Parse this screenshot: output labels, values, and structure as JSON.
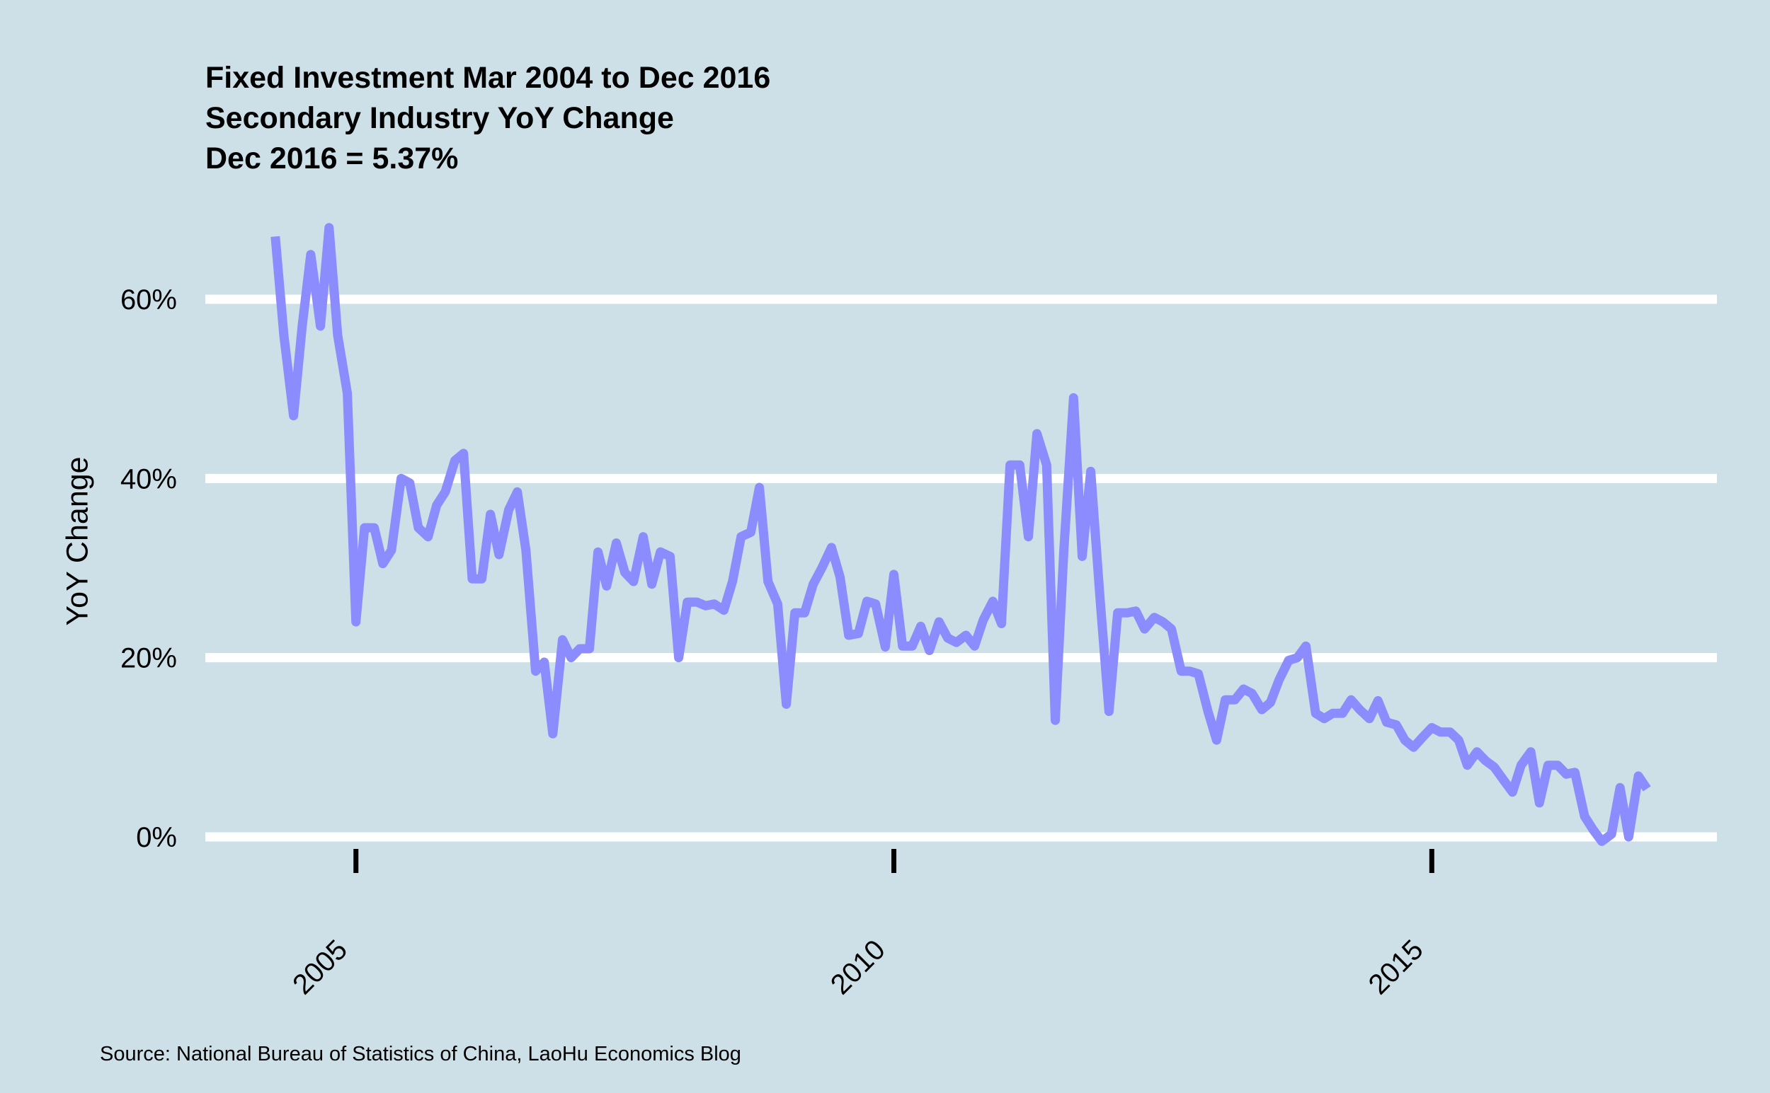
{
  "colors": {
    "background": "#cde0e8",
    "gridline": "#ffffff",
    "series_line": "#8c8cff",
    "text": "#000000"
  },
  "chart_data": {
    "type": "line",
    "title": "Fixed Investment Mar 2004 to Dec 2016",
    "subtitle": "Secondary Industry YoY Change",
    "subtitle2": "Dec 2016 = 5.37%",
    "xlabel": "",
    "ylabel": "YoY Change",
    "caption": "Source: National Bureau of Statistics of China, LaoHu Economics Blog",
    "grid": "horizontal major lines",
    "legend": "none",
    "xlim": [
      2003.6,
      2017.65
    ],
    "ylim": [
      -5,
      80
    ],
    "x_ticks": [
      2005,
      2010,
      2015
    ],
    "x_tick_labels": [
      "2005",
      "2010",
      "2015"
    ],
    "y_ticks": [
      0,
      20,
      40,
      60
    ],
    "y_tick_labels": [
      "0%",
      "20%",
      "40%",
      "60%"
    ],
    "series": [
      {
        "values": [
          [
            2004.25,
            67
          ],
          [
            2004.33,
            56
          ],
          [
            2004.42,
            47
          ],
          [
            2004.5,
            57
          ],
          [
            2004.58,
            65
          ],
          [
            2004.67,
            57
          ],
          [
            2004.75,
            68
          ],
          [
            2004.83,
            56
          ],
          [
            2004.92,
            49.5
          ],
          [
            2005.0,
            24
          ],
          [
            2005.08,
            34.5
          ],
          [
            2005.17,
            34.5
          ],
          [
            2005.25,
            30.5
          ],
          [
            2005.33,
            32
          ],
          [
            2005.42,
            40
          ],
          [
            2005.5,
            39.5
          ],
          [
            2005.58,
            34.5
          ],
          [
            2005.67,
            33.5
          ],
          [
            2005.75,
            37
          ],
          [
            2005.83,
            38.5
          ],
          [
            2005.92,
            42
          ],
          [
            2006.0,
            42.8
          ],
          [
            2006.08,
            28.8
          ],
          [
            2006.17,
            28.8
          ],
          [
            2006.25,
            36
          ],
          [
            2006.33,
            31.5
          ],
          [
            2006.42,
            36.5
          ],
          [
            2006.5,
            38.5
          ],
          [
            2006.58,
            32
          ],
          [
            2006.67,
            18.5
          ],
          [
            2006.75,
            19.5
          ],
          [
            2006.83,
            11.5
          ],
          [
            2006.92,
            22
          ],
          [
            2007.0,
            20
          ],
          [
            2007.08,
            21
          ],
          [
            2007.17,
            21
          ],
          [
            2007.25,
            31.8
          ],
          [
            2007.33,
            28
          ],
          [
            2007.42,
            32.8
          ],
          [
            2007.5,
            29.5
          ],
          [
            2007.58,
            28.5
          ],
          [
            2007.67,
            33.5
          ],
          [
            2007.75,
            28.2
          ],
          [
            2007.83,
            31.8
          ],
          [
            2007.92,
            31.3
          ],
          [
            2008.0,
            20
          ],
          [
            2008.08,
            26.2
          ],
          [
            2008.17,
            26.2
          ],
          [
            2008.25,
            25.8
          ],
          [
            2008.33,
            26
          ],
          [
            2008.42,
            25.3
          ],
          [
            2008.5,
            28.5
          ],
          [
            2008.58,
            33.5
          ],
          [
            2008.67,
            34
          ],
          [
            2008.75,
            39
          ],
          [
            2008.83,
            28.5
          ],
          [
            2008.92,
            26
          ],
          [
            2009.0,
            14.8
          ],
          [
            2009.08,
            25
          ],
          [
            2009.17,
            25
          ],
          [
            2009.25,
            28.2
          ],
          [
            2009.33,
            30
          ],
          [
            2009.42,
            32.3
          ],
          [
            2009.5,
            29
          ],
          [
            2009.58,
            22.5
          ],
          [
            2009.67,
            22.7
          ],
          [
            2009.75,
            26.3
          ],
          [
            2009.83,
            26
          ],
          [
            2009.92,
            21.2
          ],
          [
            2010.0,
            29.3
          ],
          [
            2010.08,
            21.3
          ],
          [
            2010.17,
            21.3
          ],
          [
            2010.25,
            23.5
          ],
          [
            2010.33,
            20.8
          ],
          [
            2010.42,
            24
          ],
          [
            2010.5,
            22.2
          ],
          [
            2010.58,
            21.7
          ],
          [
            2010.67,
            22.5
          ],
          [
            2010.75,
            21.3
          ],
          [
            2010.83,
            24.2
          ],
          [
            2010.92,
            26.3
          ],
          [
            2011.0,
            23.8
          ],
          [
            2011.08,
            41.5
          ],
          [
            2011.17,
            41.5
          ],
          [
            2011.25,
            33.5
          ],
          [
            2011.33,
            45
          ],
          [
            2011.42,
            41.5
          ],
          [
            2011.5,
            13
          ],
          [
            2011.58,
            32
          ],
          [
            2011.67,
            49
          ],
          [
            2011.75,
            31.3
          ],
          [
            2011.83,
            40.8
          ],
          [
            2011.92,
            26
          ],
          [
            2012.0,
            14
          ],
          [
            2012.08,
            25
          ],
          [
            2012.17,
            25
          ],
          [
            2012.25,
            25.2
          ],
          [
            2012.33,
            23.2
          ],
          [
            2012.42,
            24.5
          ],
          [
            2012.5,
            24
          ],
          [
            2012.58,
            23.2
          ],
          [
            2012.67,
            18.5
          ],
          [
            2012.75,
            18.5
          ],
          [
            2012.83,
            18.2
          ],
          [
            2012.92,
            14
          ],
          [
            2013.0,
            10.8
          ],
          [
            2013.08,
            15.3
          ],
          [
            2013.17,
            15.3
          ],
          [
            2013.25,
            16.5
          ],
          [
            2013.33,
            16
          ],
          [
            2013.42,
            14.2
          ],
          [
            2013.5,
            15
          ],
          [
            2013.58,
            17.5
          ],
          [
            2013.67,
            19.7
          ],
          [
            2013.75,
            20
          ],
          [
            2013.83,
            21.3
          ],
          [
            2013.92,
            13.8
          ],
          [
            2014.0,
            13.2
          ],
          [
            2014.08,
            13.8
          ],
          [
            2014.17,
            13.8
          ],
          [
            2014.25,
            15.3
          ],
          [
            2014.33,
            14.2
          ],
          [
            2014.42,
            13.2
          ],
          [
            2014.5,
            15.2
          ],
          [
            2014.58,
            12.8
          ],
          [
            2014.67,
            12.5
          ],
          [
            2014.75,
            10.8
          ],
          [
            2014.83,
            10
          ],
          [
            2014.92,
            11.2
          ],
          [
            2015.0,
            12.2
          ],
          [
            2015.08,
            11.7
          ],
          [
            2015.17,
            11.7
          ],
          [
            2015.25,
            10.8
          ],
          [
            2015.33,
            8
          ],
          [
            2015.42,
            9.5
          ],
          [
            2015.5,
            8.5
          ],
          [
            2015.58,
            7.8
          ],
          [
            2015.67,
            6.3
          ],
          [
            2015.75,
            5
          ],
          [
            2015.83,
            8
          ],
          [
            2015.92,
            9.5
          ],
          [
            2016.0,
            3.8
          ],
          [
            2016.08,
            8
          ],
          [
            2016.17,
            8
          ],
          [
            2016.25,
            7
          ],
          [
            2016.33,
            7.2
          ],
          [
            2016.42,
            2.3
          ],
          [
            2016.5,
            0.8
          ],
          [
            2016.58,
            -0.5
          ],
          [
            2016.67,
            0.3
          ],
          [
            2016.75,
            5.5
          ],
          [
            2016.83,
            0
          ],
          [
            2016.92,
            6.8
          ],
          [
            2017.0,
            5.37
          ]
        ]
      }
    ]
  }
}
